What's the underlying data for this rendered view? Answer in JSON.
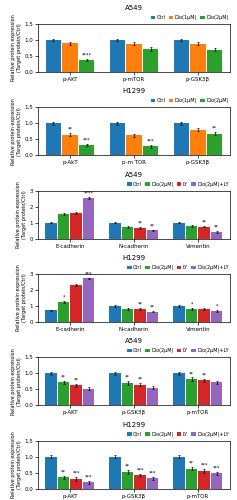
{
  "chart_data": [
    {
      "type": "bar",
      "title": "A549",
      "y_label": "Relative protein expression\n(Target protein/Ctrl)",
      "categories": [
        "p-AKT",
        "p-mTOR",
        "p-GSK3β"
      ],
      "series": [
        {
          "name": "Ctrl",
          "values": [
            1.0,
            1.0,
            1.0
          ],
          "errors": [
            0.04,
            0.04,
            0.04
          ]
        },
        {
          "name": "Dio(1μM)",
          "values": [
            0.9,
            0.88,
            0.88
          ],
          "errors": [
            0.05,
            0.05,
            0.05
          ]
        },
        {
          "name": "Dio(2μM)",
          "values": [
            0.38,
            0.72,
            0.7
          ],
          "errors": [
            0.04,
            0.05,
            0.05
          ]
        }
      ],
      "ylim": [
        0,
        1.5
      ],
      "yticks": [
        {
          "value": 0,
          "label": "0.0"
        },
        0.5,
        {
          "value": 1,
          "label": "1.0"
        },
        1.5
      ],
      "legend": "lower right",
      "annotations": [
        {
          "series": "Dio(2μM)",
          "category": "p-AKT",
          "text": "****"
        }
      ]
    },
    {
      "type": "bar",
      "title": "H1299",
      "y_label": "Relative protein expression\n(Target protein/Ctrl)",
      "categories": [
        "p-AkT",
        "p-m TOR",
        "p-GSK3β"
      ],
      "series": [
        {
          "name": "Ctrl",
          "values": [
            1.0,
            1.0,
            1.0
          ],
          "errors": [
            0.04,
            0.04,
            0.04
          ]
        },
        {
          "name": "Dio(1μM)",
          "values": [
            0.65,
            0.62,
            0.8
          ],
          "errors": [
            0.05,
            0.05,
            0.04
          ]
        },
        {
          "name": "Dio(2μM)",
          "values": [
            0.32,
            0.28,
            0.68
          ],
          "errors": [
            0.04,
            0.04,
            0.05
          ]
        }
      ],
      "ylim": [
        0,
        1.5
      ],
      "yticks": [
        {
          "value": 0,
          "label": "0.0"
        },
        0.5,
        {
          "value": 1,
          "label": "1.0"
        },
        1.5
      ],
      "legend": "lower right",
      "annotations": [
        {
          "series": "Dio(2μM)",
          "category": "p-AkT",
          "text": "***"
        },
        {
          "series": "Dio(1μM)",
          "category": "p-AkT",
          "text": "**"
        },
        {
          "series": "Dio(2μM)",
          "category": "p-m TOR",
          "text": "***"
        },
        {
          "series": "Dio(2μM)",
          "category": "p-GSK3β",
          "text": "**"
        }
      ]
    },
    {
      "type": "bar",
      "title": "A549",
      "y_label": "Relative protein expression\n(Target protein/Ctrl)",
      "categories": [
        "E-cadherin",
        "N-cadherin",
        "Vimentin"
      ],
      "series": [
        {
          "name": "Ctrl",
          "values": [
            1.0,
            1.0,
            1.0
          ],
          "errors": [
            0.05,
            0.05,
            0.05
          ]
        },
        {
          "name": "Dio(2μM)",
          "values": [
            1.55,
            0.72,
            0.78
          ],
          "errors": [
            0.06,
            0.05,
            0.05
          ]
        },
        {
          "name": "LY",
          "values": [
            1.62,
            0.65,
            0.75
          ],
          "errors": [
            0.07,
            0.05,
            0.05
          ]
        },
        {
          "name": "Dio(2μM)+LY",
          "values": [
            2.55,
            0.52,
            0.42
          ],
          "errors": [
            0.07,
            0.05,
            0.06
          ]
        }
      ],
      "ylim": [
        0,
        3
      ],
      "yticks": [
        0,
        1,
        2,
        3
      ],
      "legend": "lower right",
      "annotations": [
        {
          "series": "Dio(2μM)+LY",
          "category": "E-cadherin",
          "text": "****"
        },
        {
          "series": "LY",
          "category": "N-cadherin",
          "text": "**"
        },
        {
          "series": "Dio(2μM)+LY",
          "category": "N-cadherin",
          "text": "**"
        },
        {
          "series": "LY",
          "category": "Vimentin",
          "text": "**"
        },
        {
          "series": "Dio(2μM)+LY",
          "category": "Vimentin",
          "text": "**"
        }
      ]
    },
    {
      "type": "bar",
      "title": "H1299",
      "y_label": "Relative protein expression\n(Target protein/Ctrl)",
      "categories": [
        "E-cadherin",
        "N-cadherin",
        "Vimentin"
      ],
      "series": [
        {
          "name": "Ctrl",
          "values": [
            0.72,
            1.0,
            1.0
          ],
          "errors": [
            0.05,
            0.05,
            0.05
          ]
        },
        {
          "name": "Dio(2μM)",
          "values": [
            1.25,
            0.82,
            0.82
          ],
          "errors": [
            0.06,
            0.05,
            0.05
          ]
        },
        {
          "name": "LY",
          "values": [
            2.3,
            0.8,
            0.8
          ],
          "errors": [
            0.07,
            0.05,
            0.05
          ]
        },
        {
          "name": "Dio(2μM)+LY",
          "values": [
            2.72,
            0.65,
            0.68
          ],
          "errors": [
            0.06,
            0.05,
            0.05
          ]
        }
      ],
      "ylim": [
        0,
        3
      ],
      "yticks": [
        0,
        1,
        2,
        3
      ],
      "legend": "lower right",
      "annotations": [
        {
          "series": "Dio(2μM)",
          "category": "E-cadherin",
          "text": "*"
        },
        {
          "series": "Dio(2μM)+LY",
          "category": "E-cadherin",
          "text": "***"
        },
        {
          "series": "LY",
          "category": "N-cadherin",
          "text": "**"
        },
        {
          "series": "Dio(2μM)+LY",
          "category": "N-cadherin",
          "text": "**"
        },
        {
          "series": "Dio(2μM)",
          "category": "Vimentin",
          "text": "*"
        },
        {
          "series": "Dio(2μM)+LY",
          "category": "Vimentin",
          "text": "*"
        }
      ]
    },
    {
      "type": "bar",
      "title": "A549",
      "y_label": "Relative protein expression\n(Target protein/Ctrl)",
      "categories": [
        "p-AKT",
        "p-GSK3β",
        "p-mTOR"
      ],
      "series": [
        {
          "name": "Ctrl",
          "values": [
            1.0,
            1.0,
            1.0
          ],
          "errors": [
            0.04,
            0.04,
            0.04
          ]
        },
        {
          "name": "Dio(2μM)",
          "values": [
            0.72,
            0.7,
            0.82
          ],
          "errors": [
            0.05,
            0.05,
            0.05
          ]
        },
        {
          "name": "LY",
          "values": [
            0.62,
            0.65,
            0.78
          ],
          "errors": [
            0.05,
            0.05,
            0.05
          ]
        },
        {
          "name": "Dio(2μM)+LY",
          "values": [
            0.52,
            0.55,
            0.72
          ],
          "errors": [
            0.05,
            0.05,
            0.05
          ]
        }
      ],
      "ylim": [
        0,
        1.5
      ],
      "yticks": [
        {
          "value": 0,
          "label": "0.0"
        },
        0.5,
        {
          "value": 1,
          "label": "1.0"
        },
        1.5
      ],
      "legend": "lower right",
      "annotations": [
        {
          "series": "Dio(2μM)",
          "category": "p-AKT",
          "text": "**"
        },
        {
          "series": "LY",
          "category": "p-AKT",
          "text": "**"
        },
        {
          "series": "Dio(2μM)",
          "category": "p-GSK3β",
          "text": "**"
        },
        {
          "series": "LY",
          "category": "p-GSK3β",
          "text": "**"
        },
        {
          "series": "Dio(2μM)",
          "category": "p-mTOR",
          "text": "**"
        },
        {
          "series": "LY",
          "category": "p-mTOR",
          "text": "**"
        }
      ]
    },
    {
      "type": "bar",
      "title": "H1299",
      "y_label": "Relative protein expression\n(Target protein/Ctrl)",
      "categories": [
        "p-AKT",
        "p-GSK3β",
        "p-mTOR"
      ],
      "series": [
        {
          "name": "Ctrl",
          "values": [
            1.0,
            1.0,
            1.0
          ],
          "errors": [
            0.04,
            0.04,
            0.04
          ]
        },
        {
          "name": "Dio(2μM)",
          "values": [
            0.35,
            0.52,
            0.62
          ],
          "errors": [
            0.05,
            0.05,
            0.05
          ]
        },
        {
          "name": "LY",
          "values": [
            0.3,
            0.42,
            0.55
          ],
          "errors": [
            0.05,
            0.05,
            0.05
          ]
        },
        {
          "name": "Dio(2μM)+LY",
          "values": [
            0.2,
            0.32,
            0.48
          ],
          "errors": [
            0.05,
            0.05,
            0.05
          ]
        }
      ],
      "ylim": [
        0,
        1.5
      ],
      "yticks": [
        {
          "value": 0,
          "label": "0.0"
        },
        0.5,
        {
          "value": 1,
          "label": "1.0"
        },
        1.5
      ],
      "legend": "lower right",
      "annotations": [
        {
          "series": "Dio(2μM)",
          "category": "p-AKT",
          "text": "**"
        },
        {
          "series": "LY",
          "category": "p-AKT",
          "text": "***"
        },
        {
          "series": "Dio(2μM)+LY",
          "category": "p-AKT",
          "text": "***"
        },
        {
          "series": "Dio(2μM)",
          "category": "p-GSK3β",
          "text": "**"
        },
        {
          "series": "LY",
          "category": "p-GSK3β",
          "text": "***"
        },
        {
          "series": "Dio(2μM)+LY",
          "category": "p-GSK3β",
          "text": "***"
        },
        {
          "series": "Dio(2μM)",
          "category": "p-mTOR",
          "text": "**"
        },
        {
          "series": "LY",
          "category": "p-mTOR",
          "text": "***"
        },
        {
          "series": "Dio(2μM)+LY",
          "category": "p-mTOR",
          "text": "***"
        }
      ]
    }
  ]
}
